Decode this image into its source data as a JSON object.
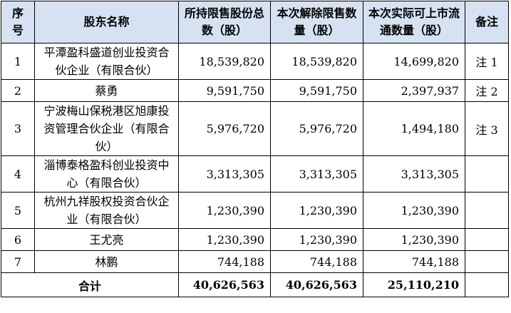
{
  "headers": {
    "seq": "序号",
    "name": "股东名称",
    "held": "所持限售股份总数（股）",
    "released": "本次解除限售数量（股）",
    "circulating": "本次实际可上市流通数量（股）",
    "note": "备注"
  },
  "rows": [
    {
      "seq": "1",
      "name": "平潭盈科盛道创业投资合伙企业（有限合伙）",
      "held": "18,539,820",
      "released": "18,539,820",
      "circulating": "14,699,820",
      "note": "注 1"
    },
    {
      "seq": "2",
      "name": "蔡勇",
      "held": "9,591,750",
      "released": "9,591,750",
      "circulating": "2,397,937",
      "note": "注 2"
    },
    {
      "seq": "3",
      "name": "宁波梅山保税港区旭康投资管理合伙企业（有限合伙）",
      "held": "5,976,720",
      "released": "5,976,720",
      "circulating": "1,494,180",
      "note": "注 3"
    },
    {
      "seq": "4",
      "name": "淄博泰格盈科创业投资中心（有限合伙）",
      "held": "3,313,305",
      "released": "3,313,305",
      "circulating": "3,313,305",
      "note": ""
    },
    {
      "seq": "5",
      "name": "杭州九祥股权投资合伙企业（有限合伙）",
      "held": "1,230,390",
      "released": "1,230,390",
      "circulating": "1,230,390",
      "note": ""
    },
    {
      "seq": "6",
      "name": "王尤亮",
      "held": "1,230,390",
      "released": "1,230,390",
      "circulating": "1,230,390",
      "note": ""
    },
    {
      "seq": "7",
      "name": "林鹏",
      "held": "744,188",
      "released": "744,188",
      "circulating": "744,188",
      "note": ""
    }
  ],
  "total": {
    "label": "合计",
    "held": "40,626,563",
    "released": "40,626,563",
    "circulating": "25,110,210",
    "note": ""
  },
  "colors": {
    "header_background": "#d6e2f1",
    "border": "#000000"
  }
}
